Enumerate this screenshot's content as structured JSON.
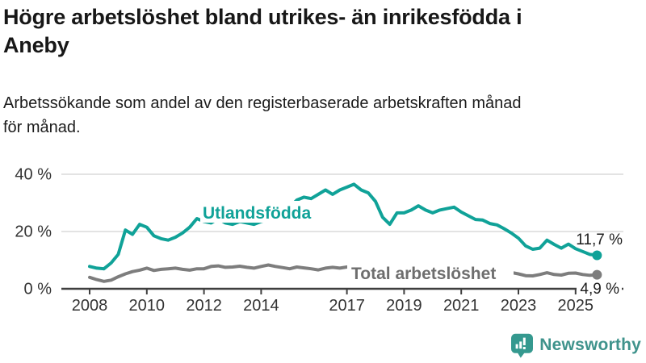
{
  "title": "Högre arbetslöshet bland utrikes- än inrikesfödda i\nAneby",
  "subtitle": "Arbetssökande som andel av den registerbaserade arbetskraften månad\nför månad.",
  "chart_data": {
    "type": "line",
    "x_unit": "year (monthly data)",
    "x_start": 2008.0,
    "x_step": 0.25,
    "x_end": 2025.75,
    "xlim": [
      2007.1,
      2026.6
    ],
    "ylim": [
      0,
      44
    ],
    "grid": "horizontal",
    "y_ticks": [
      {
        "value": 0,
        "label": "0 %"
      },
      {
        "value": 20,
        "label": "20 %"
      },
      {
        "value": 40,
        "label": "40 %"
      }
    ],
    "x_ticks": [
      {
        "value": 2008,
        "label": "2008"
      },
      {
        "value": 2010,
        "label": "2010"
      },
      {
        "value": 2012,
        "label": "2012"
      },
      {
        "value": 2014,
        "label": "2014"
      },
      {
        "value": 2017,
        "label": "2017"
      },
      {
        "value": 2019,
        "label": "2019"
      },
      {
        "value": 2021,
        "label": "2021"
      },
      {
        "value": 2023,
        "label": "2023"
      },
      {
        "value": 2025,
        "label": "2025"
      }
    ],
    "series": [
      {
        "name": "Utlandsfödda",
        "color": "#10a298",
        "end_value": 11.7,
        "end_label": "11,7 %",
        "values": [
          7.8,
          7.2,
          7.0,
          9.0,
          12.0,
          20.5,
          19.0,
          22.5,
          21.5,
          18.5,
          17.5,
          17.0,
          18.0,
          19.5,
          21.5,
          24.5,
          23.5,
          23.0,
          24.5,
          23.0,
          22.5,
          23.5,
          23.0,
          22.5,
          23.5,
          24.0,
          24.5,
          26.0,
          28.5,
          31.0,
          32.0,
          31.5,
          33.0,
          34.5,
          33.0,
          34.5,
          35.5,
          36.5,
          34.5,
          33.5,
          30.5,
          25.0,
          22.5,
          26.5,
          26.5,
          27.5,
          29.0,
          27.5,
          26.5,
          27.5,
          28.0,
          28.5,
          26.8,
          25.5,
          24.2,
          24.0,
          22.8,
          22.3,
          21.0,
          19.5,
          17.7,
          15.0,
          13.8,
          14.2,
          17.0,
          15.5,
          14.2,
          15.6,
          14.0,
          13.0,
          12.0,
          11.7
        ]
      },
      {
        "name": "Total arbetslöshet",
        "color": "#7d7d7d",
        "end_value": 4.9,
        "end_label": "4,9 %",
        "values": [
          4.0,
          3.2,
          2.6,
          3.0,
          4.2,
          5.2,
          6.0,
          6.5,
          7.2,
          6.4,
          6.8,
          7.0,
          7.2,
          6.8,
          6.5,
          7.0,
          7.0,
          7.8,
          8.0,
          7.5,
          7.6,
          7.9,
          7.5,
          7.2,
          7.8,
          8.3,
          7.8,
          7.4,
          7.0,
          7.6,
          7.3,
          7.0,
          6.6,
          7.2,
          7.5,
          7.2,
          7.6,
          7.8,
          7.0,
          6.6,
          6.8,
          7.0,
          6.8,
          6.4,
          5.9,
          6.3,
          6.5,
          6.8,
          7.0,
          7.4,
          7.2,
          7.0,
          7.0,
          6.8,
          6.5,
          6.2,
          6.0,
          5.9,
          5.8,
          5.7,
          5.2,
          4.6,
          4.5,
          5.0,
          5.6,
          5.0,
          4.8,
          5.4,
          5.5,
          5.0,
          4.7,
          4.9
        ]
      }
    ],
    "colors": {
      "grid": "#dadada",
      "axis": "#3f3f3f",
      "tick_text": "#333333",
      "value_label_text": "#1d1d1d",
      "series_label_total": "#6e6e6e"
    }
  },
  "footer": {
    "brand": "Newsworthy",
    "logo_icon": "bar-chart-speech-bubble-icon",
    "brand_color": "#3f938c",
    "icon_color": "#35998f"
  }
}
